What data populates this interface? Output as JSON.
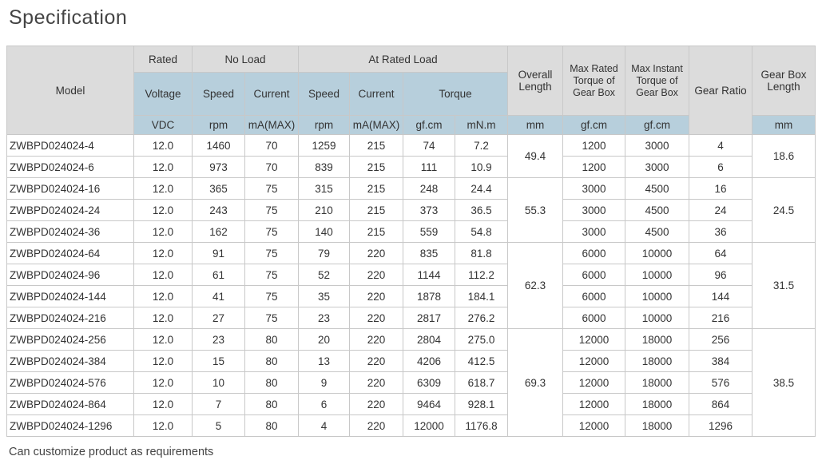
{
  "title": "Specification",
  "header": {
    "model": "Model",
    "rated": "Rated",
    "no_load": "No Load",
    "at_rated_load": "At Rated Load",
    "overall_length": "Overall Length",
    "max_rated_torque": "Max Rated Torque of Gear Box",
    "max_instant_torque": "Max Instant Torque of Gear Box",
    "gear_ratio": "Gear Ratio",
    "gear_box_length": "Gear Box Length",
    "voltage": "Voltage",
    "speed": "Speed",
    "current": "Current",
    "torque": "Torque",
    "units": {
      "voltage": "VDC",
      "nl_speed": "rpm",
      "nl_current": "mA(MAX)",
      "rl_speed": "rpm",
      "rl_current": "mA(MAX)",
      "torque_gf": "gf.cm",
      "torque_mn": "mN.m",
      "overall_length": "mm",
      "max_rated": "gf.cm",
      "max_instant": "gf.cm",
      "gear_box_length": "mm"
    }
  },
  "groups": [
    {
      "overall_length": "49.4",
      "gear_box_length": "18.6",
      "rows": [
        [
          "ZWBPD024024-4",
          "12.0",
          "1460",
          "70",
          "1259",
          "215",
          "74",
          "7.2",
          "1200",
          "3000",
          "4"
        ],
        [
          "ZWBPD024024-6",
          "12.0",
          "973",
          "70",
          "839",
          "215",
          "111",
          "10.9",
          "1200",
          "3000",
          "6"
        ]
      ]
    },
    {
      "overall_length": "55.3",
      "gear_box_length": "24.5",
      "rows": [
        [
          "ZWBPD024024-16",
          "12.0",
          "365",
          "75",
          "315",
          "215",
          "248",
          "24.4",
          "3000",
          "4500",
          "16"
        ],
        [
          "ZWBPD024024-24",
          "12.0",
          "243",
          "75",
          "210",
          "215",
          "373",
          "36.5",
          "3000",
          "4500",
          "24"
        ],
        [
          "ZWBPD024024-36",
          "12.0",
          "162",
          "75",
          "140",
          "215",
          "559",
          "54.8",
          "3000",
          "4500",
          "36"
        ]
      ]
    },
    {
      "overall_length": "62.3",
      "gear_box_length": "31.5",
      "rows": [
        [
          "ZWBPD024024-64",
          "12.0",
          "91",
          "75",
          "79",
          "220",
          "835",
          "81.8",
          "6000",
          "10000",
          "64"
        ],
        [
          "ZWBPD024024-96",
          "12.0",
          "61",
          "75",
          "52",
          "220",
          "1144",
          "112.2",
          "6000",
          "10000",
          "96"
        ],
        [
          "ZWBPD024024-144",
          "12.0",
          "41",
          "75",
          "35",
          "220",
          "1878",
          "184.1",
          "6000",
          "10000",
          "144"
        ],
        [
          "ZWBPD024024-216",
          "12.0",
          "27",
          "75",
          "23",
          "220",
          "2817",
          "276.2",
          "6000",
          "10000",
          "216"
        ]
      ]
    },
    {
      "overall_length": "69.3",
      "gear_box_length": "38.5",
      "rows": [
        [
          "ZWBPD024024-256",
          "12.0",
          "23",
          "80",
          "20",
          "220",
          "2804",
          "275.0",
          "12000",
          "18000",
          "256"
        ],
        [
          "ZWBPD024024-384",
          "12.0",
          "15",
          "80",
          "13",
          "220",
          "4206",
          "412.5",
          "12000",
          "18000",
          "384"
        ],
        [
          "ZWBPD024024-576",
          "12.0",
          "10",
          "80",
          "9",
          "220",
          "6309",
          "618.7",
          "12000",
          "18000",
          "576"
        ],
        [
          "ZWBPD024024-864",
          "12.0",
          "7",
          "80",
          "6",
          "220",
          "9464",
          "928.1",
          "12000",
          "18000",
          "864"
        ],
        [
          "ZWBPD024024-1296",
          "12.0",
          "5",
          "80",
          "4",
          "220",
          "12000",
          "1176.8",
          "12000",
          "18000",
          "1296"
        ]
      ]
    }
  ],
  "footnote": "Can customize product as requirements"
}
